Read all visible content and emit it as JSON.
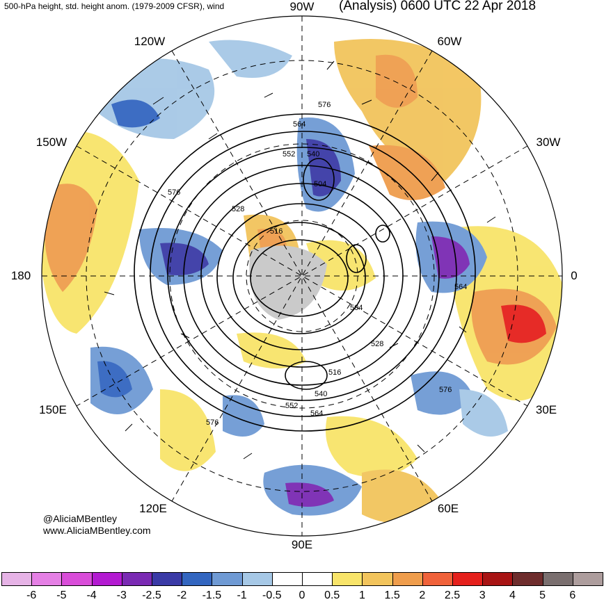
{
  "header": {
    "left_title": "500-hPa height, std. height anom. (1979-2009 CFSR), wind",
    "right_title": "(Analysis) 0600 UTC 22 Apr 2018"
  },
  "longitude_labels": {
    "n90w": "90W",
    "n60w": "60W",
    "n30w": "30W",
    "n0": "0",
    "n30e": "30E",
    "n60e": "60E",
    "n90e": "90E",
    "n120e": "120E",
    "n150e": "150E",
    "n180": "180",
    "n150w": "150W",
    "n120w": "120W"
  },
  "contour_labels": [
    "576",
    "564",
    "552",
    "540",
    "504",
    "528",
    "516",
    "576",
    "564",
    "504",
    "528",
    "516",
    "540",
    "552",
    "564",
    "576",
    "576"
  ],
  "credits": {
    "handle": "@AliciaMBentley",
    "site": "www.AliciaMBentley.com"
  },
  "colorbar": {
    "labels": [
      "-6",
      "-5",
      "-4",
      "-3",
      "-2.5",
      "-2",
      "-1.5",
      "-1",
      "-0.5",
      "0",
      "0.5",
      "1",
      "1.5",
      "2",
      "2.5",
      "3",
      "4",
      "5",
      "6"
    ],
    "colors": [
      "#e6b3e6",
      "#e580e5",
      "#d94dd9",
      "#b31ad1",
      "#7a2ab3",
      "#3a3aa6",
      "#3366c0",
      "#6f9ad4",
      "#a6c8e6",
      "#ffffff",
      "#ffffff",
      "#f8e46a",
      "#f2c45c",
      "#ef9d4c",
      "#f0623a",
      "#e5201c",
      "#a81414",
      "#6e2d2d",
      "#7a6f6f",
      "#ad9d9d"
    ]
  }
}
